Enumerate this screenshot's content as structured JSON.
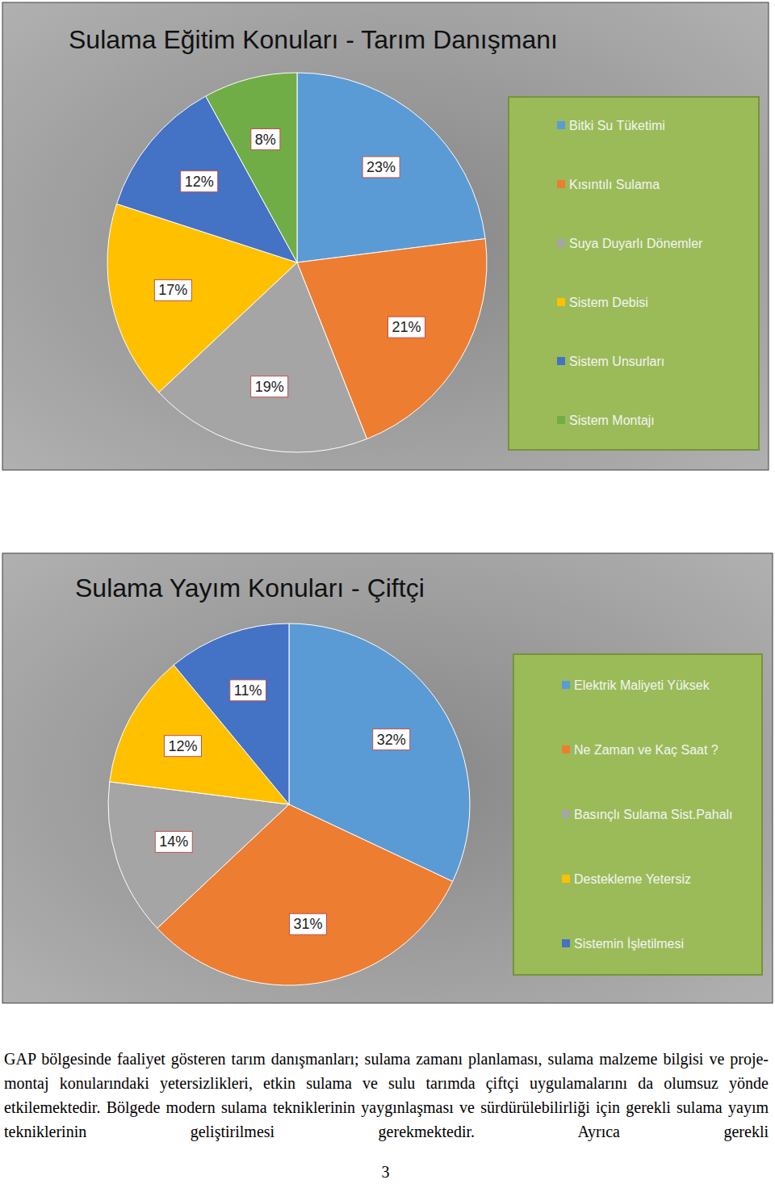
{
  "chart_data": [
    {
      "type": "pie",
      "title": "Sulama Eğitim Konuları - Tarım Danışmanı",
      "categories": [
        "Bitki Su Tüketimi",
        "Kısıntılı Sulama",
        "Suya Duyarlı Dönemler",
        "Sistem Debisi",
        "Sistem Unsurları",
        "Sistem Montajı"
      ],
      "values": [
        23,
        21,
        19,
        17,
        12,
        8
      ],
      "value_labels": [
        "23%",
        "21%",
        "19%",
        "17%",
        "12%",
        "8%"
      ],
      "colors": [
        "#5b9bd5",
        "#ed7d31",
        "#a5a5a5",
        "#ffc000",
        "#4472c4",
        "#70ad47"
      ],
      "data_labels": true,
      "legend": "right"
    },
    {
      "type": "pie",
      "title": "Sulama Yayım Konuları - Çiftçi",
      "categories": [
        "Elektrik Maliyeti Yüksek",
        "Ne Zaman ve Kaç Saat ?",
        "Basınçlı Sulama Sist.Pahalı",
        "Destekleme Yetersiz",
        "Sistemin İşletilmesi"
      ],
      "values": [
        32,
        31,
        14,
        12,
        11
      ],
      "value_labels": [
        "32%",
        "31%",
        "14%",
        "12%",
        "11%"
      ],
      "colors": [
        "#5b9bd5",
        "#ed7d31",
        "#a5a5a5",
        "#ffc000",
        "#4472c4"
      ],
      "data_labels": true,
      "legend": "right"
    }
  ],
  "paragraph": "GAP bölgesinde faaliyet gösteren tarım danışmanları; sulama zamanı planlaması, sulama malzeme bilgisi ve proje- montaj konularındaki yetersizlikleri, etkin sulama ve sulu tarımda çiftçi uygulamalarını da olumsuz yönde etkilemektedir. Bölgede modern sulama tekniklerinin yaygınlaşması ve sürdürülebilirliği için gerekli sulama yayım tekniklerinin geliştirilmesi gerekmektedir. Ayrıca gerekli",
  "page_number": 3
}
